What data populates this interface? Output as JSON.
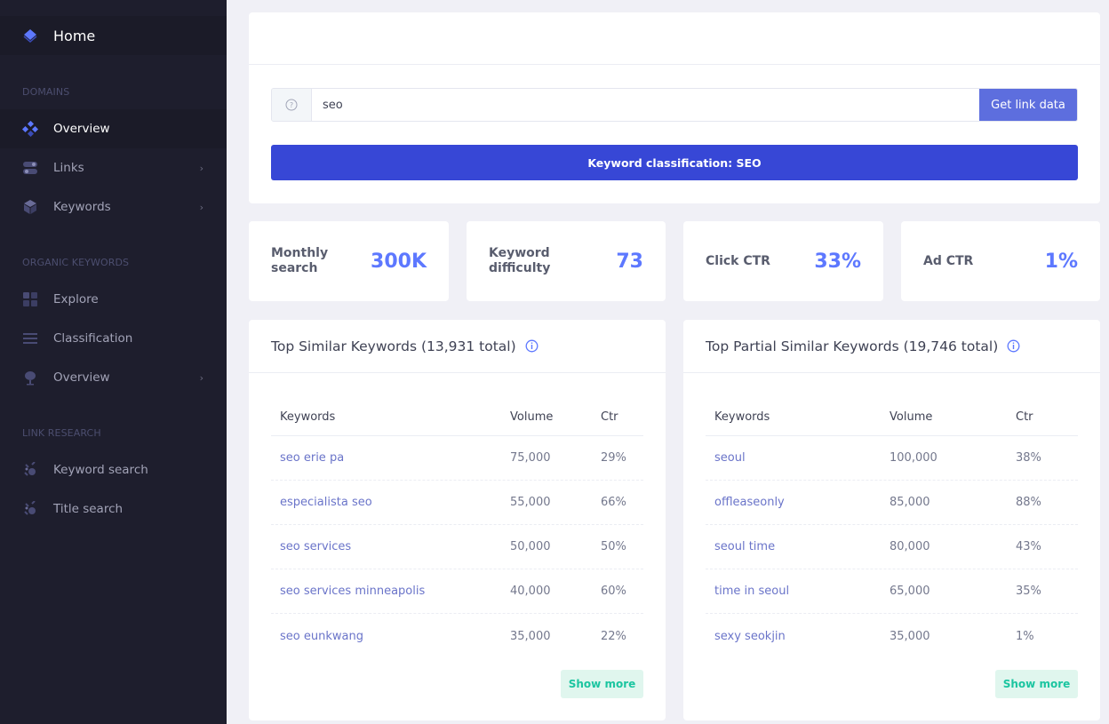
{
  "sidebar": {
    "home_label": "Home",
    "sections": {
      "domains": "Domains",
      "organic": "Organic keywords",
      "link_research": "Link research"
    },
    "items": {
      "overview": "Overview",
      "links": "Links",
      "keywords": "Keywords",
      "explore": "Explore",
      "classification": "Classification",
      "overview2": "Overview",
      "keyword_search": "Keyword search",
      "title_search": "Title search"
    },
    "chevron": "›"
  },
  "search": {
    "value": "seo",
    "button_label": "Get link data"
  },
  "classification_label": "Keyword classification: SEO",
  "stats": {
    "monthly_search": {
      "label": "Monthly search",
      "value": "300K"
    },
    "difficulty": {
      "label": "Keyword difficulty",
      "value": "73"
    },
    "click_ctr": {
      "label": "Click CTR",
      "value": "33%"
    },
    "ad_ctr": {
      "label": "Ad CTR",
      "value": "1%"
    }
  },
  "similar": {
    "title": "Top Similar Keywords (13,931 total)",
    "headers": {
      "keywords": "Keywords",
      "volume": "Volume",
      "ctr": "Ctr"
    },
    "rows": [
      {
        "keyword": "seo erie pa",
        "volume": "75,000",
        "ctr": "29%"
      },
      {
        "keyword": "especialista seo",
        "volume": "55,000",
        "ctr": "66%"
      },
      {
        "keyword": "seo services",
        "volume": "50,000",
        "ctr": "50%"
      },
      {
        "keyword": "seo services minneapolis",
        "volume": "40,000",
        "ctr": "60%"
      },
      {
        "keyword": "seo eunkwang",
        "volume": "35,000",
        "ctr": "22%"
      }
    ],
    "show_more": "Show more"
  },
  "partial": {
    "title": "Top Partial Similar Keywords (19,746 total)",
    "headers": {
      "keywords": "Keywords",
      "volume": "Volume",
      "ctr": "Ctr"
    },
    "rows": [
      {
        "keyword": "seoul",
        "volume": "100,000",
        "ctr": "38%"
      },
      {
        "keyword": "offleaseonly",
        "volume": "85,000",
        "ctr": "88%"
      },
      {
        "keyword": "seoul time",
        "volume": "80,000",
        "ctr": "43%"
      },
      {
        "keyword": "time in seoul",
        "volume": "65,000",
        "ctr": "35%"
      },
      {
        "keyword": "sexy seokjin",
        "volume": "35,000",
        "ctr": "1%"
      }
    ],
    "show_more": "Show more"
  },
  "colors": {
    "sidebar_bg": "#1e1e2d",
    "accent": "#5d78ff",
    "primary_button": "#5d6ede",
    "classification_bg": "#3747d6",
    "link": "#6a74c9",
    "show_more_bg": "#e0f6ee",
    "show_more_text": "#1bc5a0"
  }
}
